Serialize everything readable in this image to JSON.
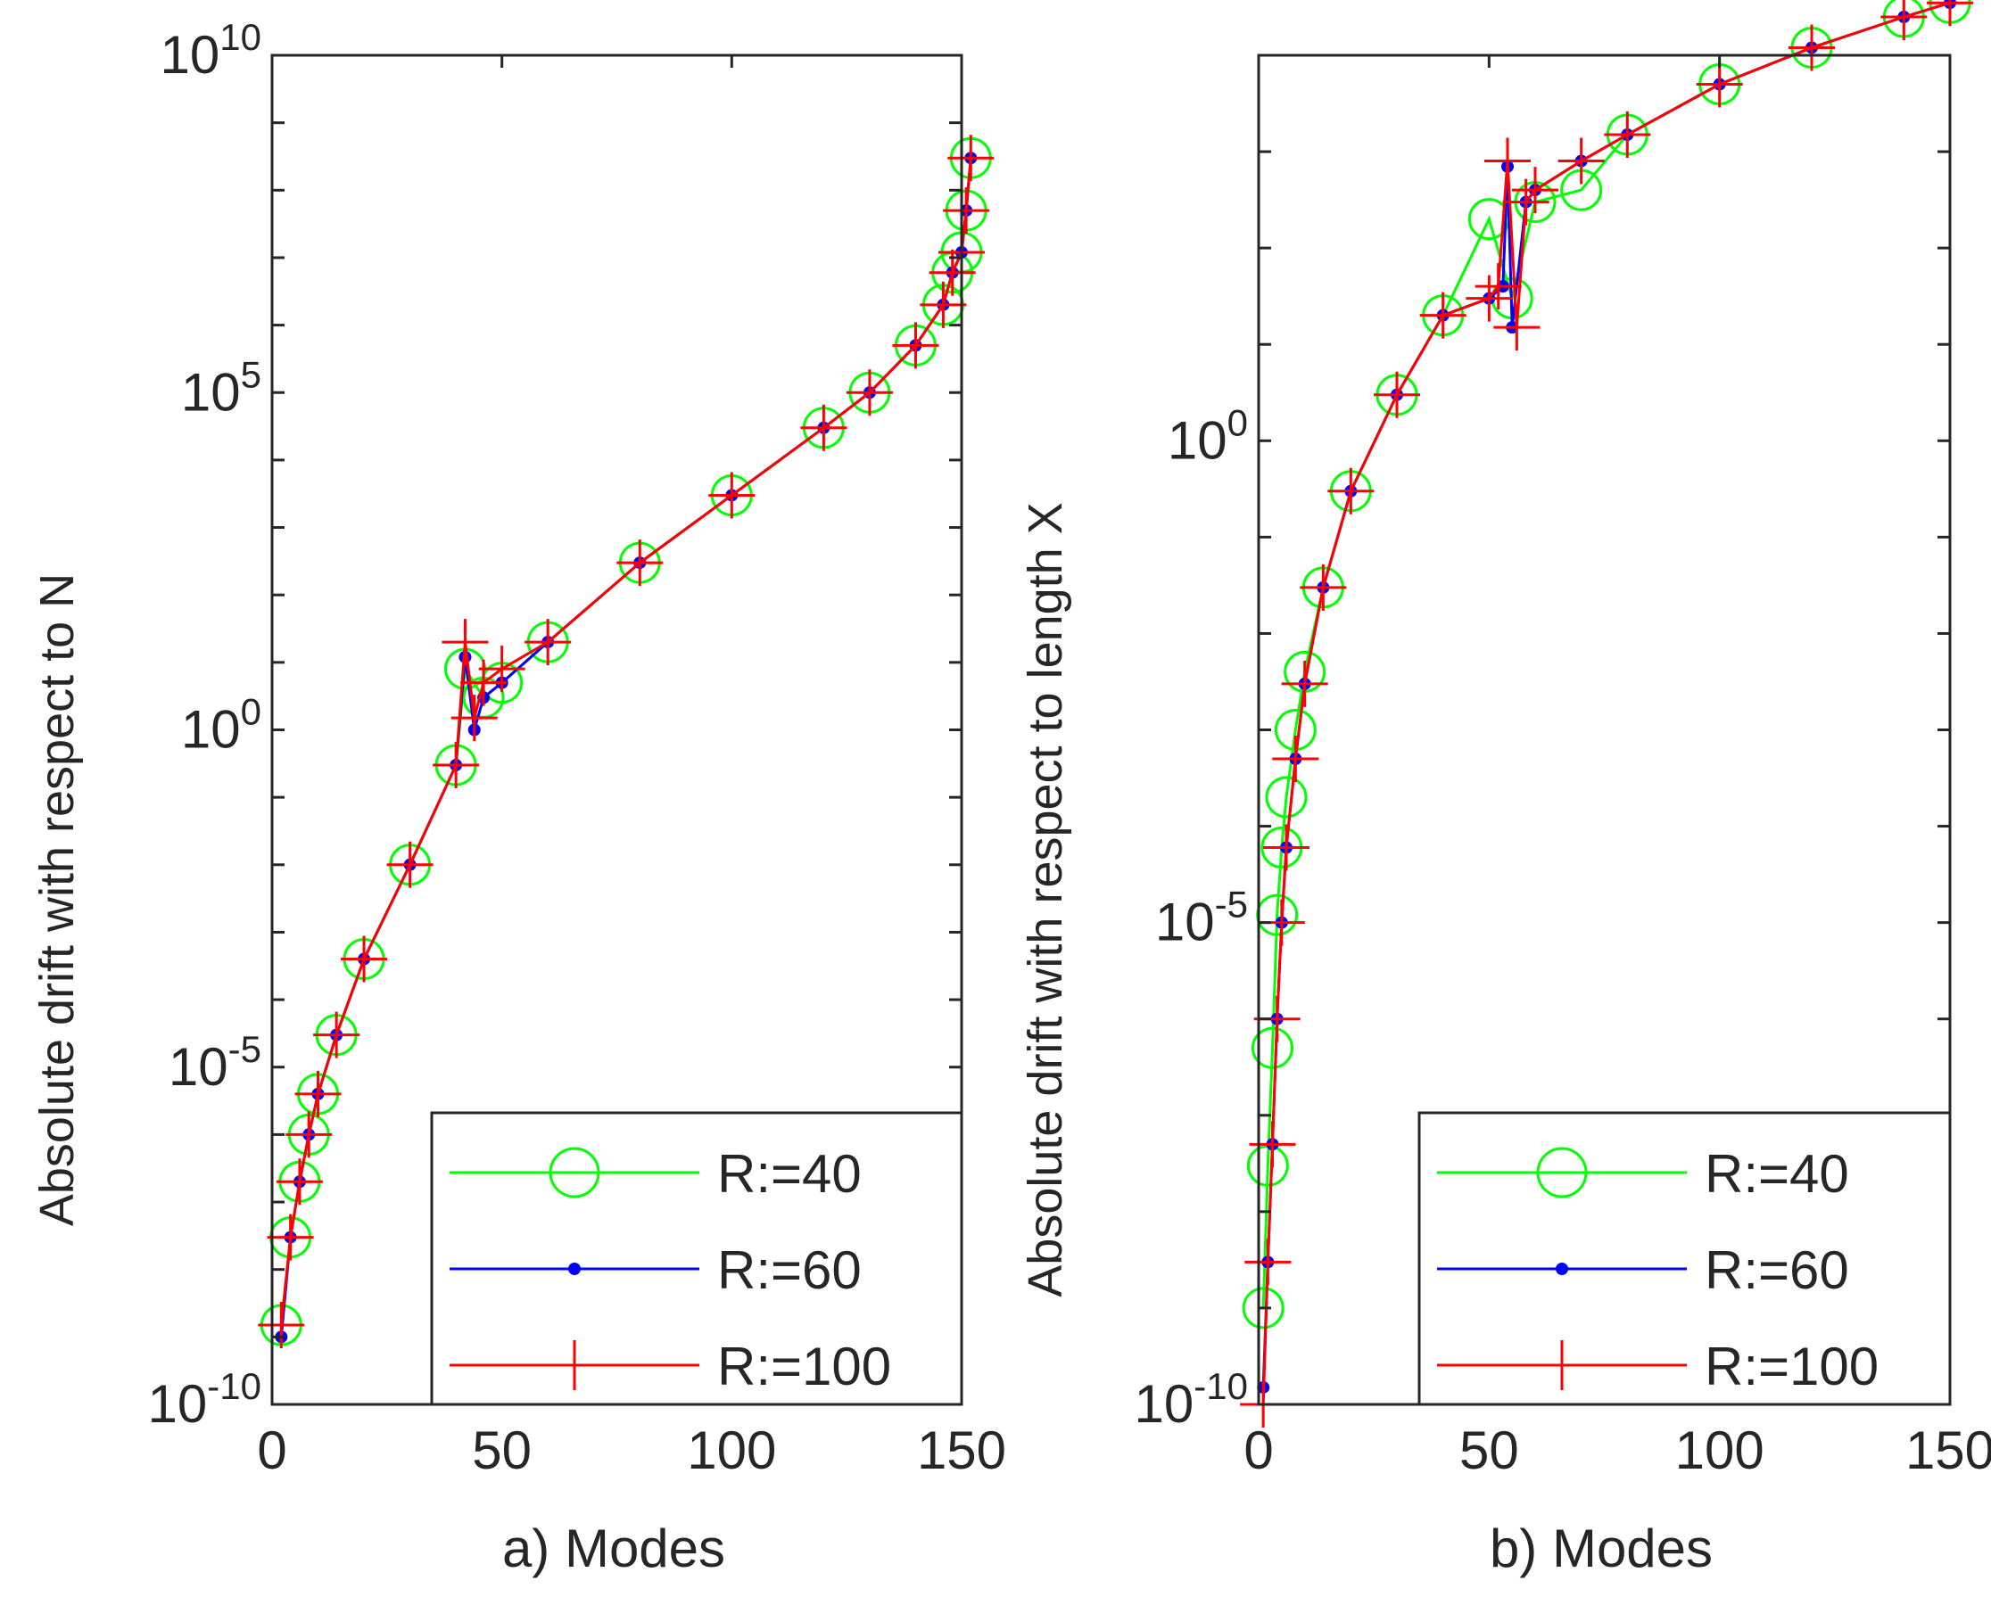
{
  "figure": {
    "left_panel_caption": "a) Modes",
    "right_panel_caption": "b) Modes"
  },
  "chart_data": [
    {
      "type": "line",
      "yscale": "log",
      "title": "",
      "xlabel": "a) Modes",
      "ylabel": "Absolute drift with respect to N",
      "xlim": [
        0,
        150
      ],
      "ylim": [
        1e-10,
        10000000000.0
      ],
      "xticks": [
        0,
        50,
        100,
        150
      ],
      "yticks": [
        {
          "base": "10",
          "exp": "-10",
          "value": 1e-10
        },
        {
          "base": "10",
          "exp": "-5",
          "value": 1e-05
        },
        {
          "base": "10",
          "exp": "0",
          "value": 1
        },
        {
          "base": "10",
          "exp": "5",
          "value": 100000.0
        },
        {
          "base": "10",
          "exp": "10",
          "value": 10000000000.0
        }
      ],
      "legend_position": "bottom-right",
      "series": [
        {
          "name": "R:=40",
          "color": "#00ff00",
          "marker": "circle",
          "x": [
            2,
            4,
            6,
            8,
            10,
            14,
            20,
            30,
            40,
            42,
            46,
            50,
            60,
            80,
            100,
            120,
            130,
            140,
            146,
            148,
            150,
            151,
            152
          ],
          "y": [
            1.5e-09,
            3e-08,
            2e-07,
            1e-06,
            4e-06,
            3e-05,
            0.0004,
            0.01,
            0.3,
            8,
            3,
            5,
            20,
            300,
            3000,
            30000.0,
            100000.0,
            500000.0,
            2000000.0,
            6000000.0,
            12000000.0,
            50000000.0,
            300000000.0
          ]
        },
        {
          "name": "R:=60",
          "color": "#0000ff",
          "marker": "dot",
          "x": [
            2,
            4,
            6,
            8,
            10,
            14,
            20,
            30,
            40,
            42,
            44,
            46,
            50,
            60,
            80,
            100,
            120,
            130,
            140,
            146,
            148,
            150,
            151,
            152
          ],
          "y": [
            1e-09,
            3e-08,
            2e-07,
            1e-06,
            4e-06,
            3e-05,
            0.0004,
            0.01,
            0.3,
            12,
            1,
            3,
            5,
            20,
            300,
            3000,
            30000.0,
            100000.0,
            500000.0,
            2000000.0,
            6000000.0,
            12000000.0,
            50000000.0,
            300000000.0
          ]
        },
        {
          "name": "R:=100",
          "color": "#ff0000",
          "marker": "plus",
          "x": [
            2,
            4,
            6,
            8,
            10,
            14,
            20,
            30,
            40,
            42,
            44,
            46,
            50,
            60,
            80,
            100,
            120,
            130,
            140,
            146,
            148,
            150,
            151,
            152
          ],
          "y": [
            1.5e-09,
            3e-08,
            2e-07,
            1e-06,
            4e-06,
            3e-05,
            0.0004,
            0.01,
            0.3,
            20,
            1.5,
            5,
            8,
            20,
            300,
            3000,
            30000.0,
            100000.0,
            500000.0,
            2000000.0,
            6000000.0,
            12000000.0,
            50000000.0,
            300000000.0
          ]
        }
      ]
    },
    {
      "type": "line",
      "yscale": "log",
      "title": "",
      "xlabel": "b) Modes",
      "ylabel": "Absolute drift with respect to length X",
      "xlim": [
        0,
        150
      ],
      "ylim": [
        1e-10,
        10000.0
      ],
      "xticks": [
        0,
        50,
        100,
        150
      ],
      "yticks": [
        {
          "base": "10",
          "exp": "-10",
          "value": 1e-10
        },
        {
          "base": "10",
          "exp": "-5",
          "value": 1e-05
        },
        {
          "base": "10",
          "exp": "0",
          "value": 1
        }
      ],
      "legend_position": "bottom-right",
      "series": [
        {
          "name": "R:=40",
          "color": "#00ff00",
          "marker": "circle",
          "x": [
            1,
            2,
            3,
            4,
            5,
            6,
            8,
            10,
            14,
            20,
            30,
            40,
            50,
            55,
            60,
            70,
            80,
            100,
            120,
            140,
            150
          ],
          "y": [
            1e-09,
            3e-08,
            5e-07,
            1.2e-05,
            6e-05,
            0.0002,
            0.001,
            0.004,
            0.03,
            0.3,
            3,
            20,
            200,
            30,
            300,
            400,
            1500,
            5000,
            12000.0,
            25000.0,
            35000.0
          ]
        },
        {
          "name": "R:=60",
          "color": "#0000ff",
          "marker": "dot",
          "x": [
            1,
            2,
            3,
            4,
            5,
            6,
            8,
            10,
            14,
            20,
            30,
            40,
            50,
            53,
            54,
            55,
            58,
            60,
            70,
            80,
            100,
            120,
            140,
            150
          ],
          "y": [
            1.5e-10,
            3e-09,
            5e-08,
            1e-06,
            1e-05,
            6e-05,
            0.0005,
            0.003,
            0.03,
            0.3,
            3,
            20,
            30,
            40,
            700,
            15,
            300,
            400,
            800,
            1500,
            5000,
            12000.0,
            25000.0,
            35000.0
          ]
        },
        {
          "name": "R:=100",
          "color": "#ff0000",
          "marker": "plus",
          "x": [
            1,
            2,
            3,
            4,
            5,
            6,
            8,
            10,
            14,
            20,
            30,
            40,
            50,
            52,
            54,
            56,
            58,
            60,
            70,
            80,
            100,
            120,
            140,
            150
          ],
          "y": [
            1e-10,
            3e-09,
            5e-08,
            1e-06,
            1e-05,
            6e-05,
            0.0005,
            0.003,
            0.03,
            0.3,
            3,
            20,
            30,
            40,
            800,
            15,
            300,
            400,
            800,
            1500,
            5000,
            12000.0,
            25000.0,
            35000.0
          ]
        }
      ]
    }
  ]
}
